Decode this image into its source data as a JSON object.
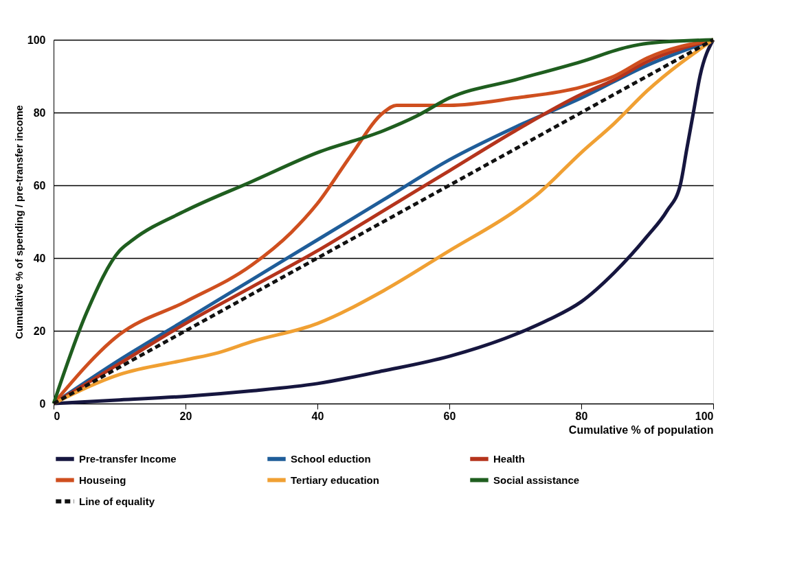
{
  "chart_data": {
    "type": "line",
    "xlabel": "Cumulative % of population",
    "ylabel": "Cumulative % of spending / pre-transfer income",
    "xlim": [
      0,
      100
    ],
    "ylim": [
      0,
      100
    ],
    "xticks": [
      0,
      20,
      40,
      60,
      80,
      100
    ],
    "yticks": [
      0,
      20,
      40,
      60,
      80,
      100
    ],
    "grid": "y",
    "legend": "bottom",
    "marker": "none",
    "series": [
      {
        "name": "Pre-transfer Income",
        "color": "#16163f",
        "line_style": "solid",
        "x": [
          0,
          10,
          20,
          30,
          40,
          50,
          60,
          70,
          75,
          80,
          85,
          90,
          93,
          95,
          96,
          97,
          98,
          100
        ],
        "values": [
          0,
          1,
          2,
          3.5,
          5.5,
          9,
          13,
          19,
          23,
          28,
          36,
          46,
          53,
          60,
          70,
          80,
          90,
          100
        ]
      },
      {
        "name": "School eduction",
        "color": "#1f5d99",
        "line_style": "solid",
        "x": [
          0,
          10,
          20,
          30,
          40,
          50,
          60,
          70,
          80,
          90,
          100
        ],
        "values": [
          0,
          12,
          23,
          34,
          45,
          56,
          67,
          76,
          84,
          93,
          100
        ]
      },
      {
        "name": "Health",
        "color": "#b5341c",
        "line_style": "solid",
        "x": [
          0,
          10,
          20,
          30,
          40,
          50,
          60,
          70,
          80,
          85,
          90,
          100
        ],
        "values": [
          0,
          11,
          22,
          32,
          42,
          53,
          64,
          75,
          85,
          89,
          94,
          100
        ]
      },
      {
        "name": "Houseing",
        "color": "#cf4f1f",
        "line_style": "solid",
        "x": [
          0,
          10,
          20,
          30,
          36,
          40,
          45,
          50,
          52,
          60,
          70,
          80,
          85,
          90,
          100
        ],
        "values": [
          0,
          19,
          28,
          38,
          47,
          55,
          68,
          80,
          82,
          82,
          84,
          87,
          90,
          95,
          100
        ]
      },
      {
        "name": "Tertiary education",
        "color": "#f0a033",
        "line_style": "solid",
        "x": [
          0,
          10,
          20,
          25,
          30,
          40,
          50,
          60,
          70,
          73,
          80,
          85,
          90,
          100
        ],
        "values": [
          0,
          8,
          12,
          14,
          17,
          22,
          31,
          42,
          53,
          57,
          69,
          77,
          86,
          100
        ]
      },
      {
        "name": "Social assistance",
        "color": "#1f5e1f",
        "line_style": "solid",
        "x": [
          0,
          5,
          10,
          12,
          20,
          30,
          40,
          50,
          55,
          60,
          70,
          80,
          87,
          90,
          100
        ],
        "values": [
          0,
          25,
          42,
          45,
          53,
          61,
          69,
          75,
          79,
          84,
          89,
          94,
          98,
          99,
          100
        ]
      },
      {
        "name": "Line of equality",
        "color": "#111111",
        "line_style": "dashed",
        "x": [
          0,
          100
        ],
        "values": [
          0,
          100
        ]
      }
    ]
  }
}
